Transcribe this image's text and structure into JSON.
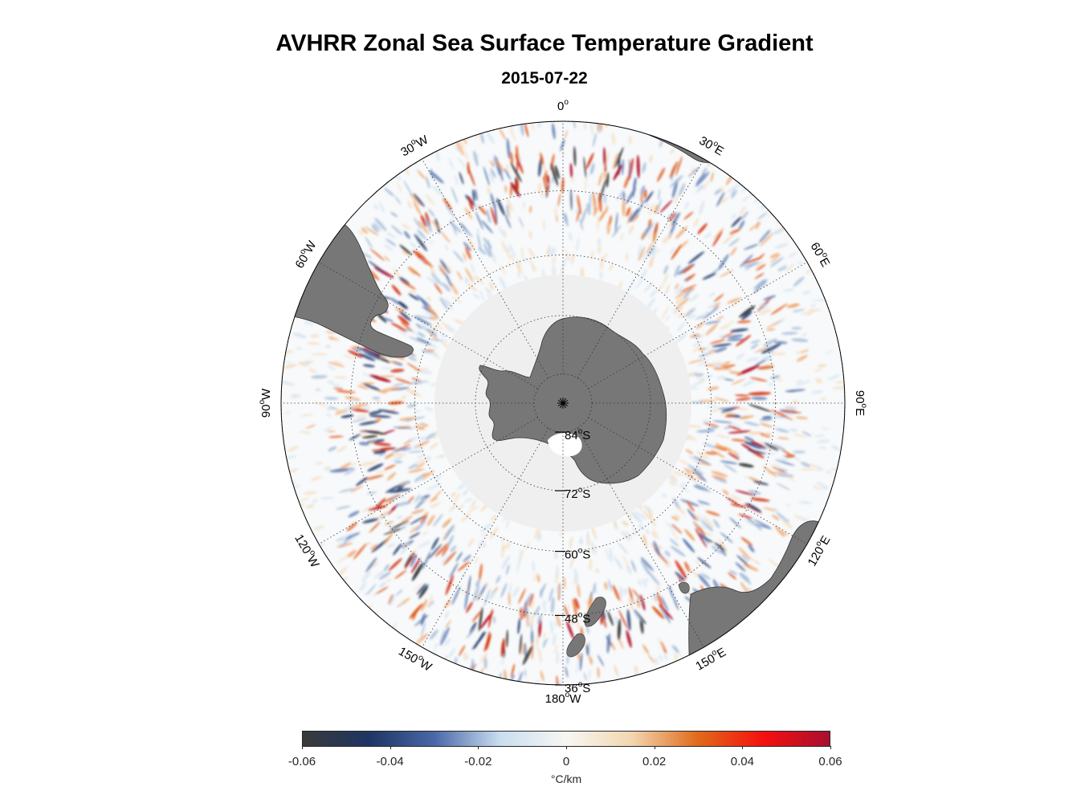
{
  "title": "AVHRR Zonal Sea Surface Temperature Gradient",
  "subtitle": "2015-07-22",
  "map": {
    "projection": "south polar stereographic",
    "lon_labels": [
      {
        "lon": 0,
        "text": "0",
        "sup": "o",
        "suffix": ""
      },
      {
        "lon": 30,
        "text": "30",
        "sup": "o",
        "suffix": "E"
      },
      {
        "lon": 60,
        "text": "60",
        "sup": "o",
        "suffix": "E"
      },
      {
        "lon": 90,
        "text": "90",
        "sup": "o",
        "suffix": "E"
      },
      {
        "lon": 120,
        "text": "120",
        "sup": "o",
        "suffix": "E"
      },
      {
        "lon": 150,
        "text": "150",
        "sup": "o",
        "suffix": "E"
      },
      {
        "lon": 180,
        "text": "180",
        "sup": "o",
        "suffix": "W"
      },
      {
        "lon": -150,
        "text": "150",
        "sup": "o",
        "suffix": "W"
      },
      {
        "lon": -120,
        "text": "120",
        "sup": "o",
        "suffix": "W"
      },
      {
        "lon": -90,
        "text": "90",
        "sup": "o",
        "suffix": "W"
      },
      {
        "lon": -60,
        "text": "60",
        "sup": "o",
        "suffix": "W"
      },
      {
        "lon": -30,
        "text": "30",
        "sup": "o",
        "suffix": "W"
      }
    ],
    "lat_labels": [
      {
        "lat": -84,
        "text": "84",
        "sup": "o",
        "suffix": "S"
      },
      {
        "lat": -72,
        "text": "72",
        "sup": "o",
        "suffix": "S"
      },
      {
        "lat": -60,
        "text": "60",
        "sup": "o",
        "suffix": "S"
      },
      {
        "lat": -48,
        "text": "48",
        "sup": "o",
        "suffix": "S"
      },
      {
        "lat": -36,
        "text": "36",
        "sup": "o",
        "suffix": "S"
      }
    ],
    "land_color": "#777777",
    "ice_color": "#efefef",
    "ocean_color": "#f7f9fa"
  },
  "colorbar": {
    "min": -0.06,
    "max": 0.06,
    "ticks": [
      "-0.06",
      "-0.04",
      "-0.02",
      "0",
      "0.02",
      "0.04",
      "0.06"
    ],
    "units_label": "°C/km",
    "colors": [
      "#3a3a3a",
      "#1e3563",
      "#4a68a8",
      "#c9def0",
      "#f7f7f3",
      "#f2d6b0",
      "#e06a1a",
      "#f41010",
      "#a8102e"
    ]
  }
}
